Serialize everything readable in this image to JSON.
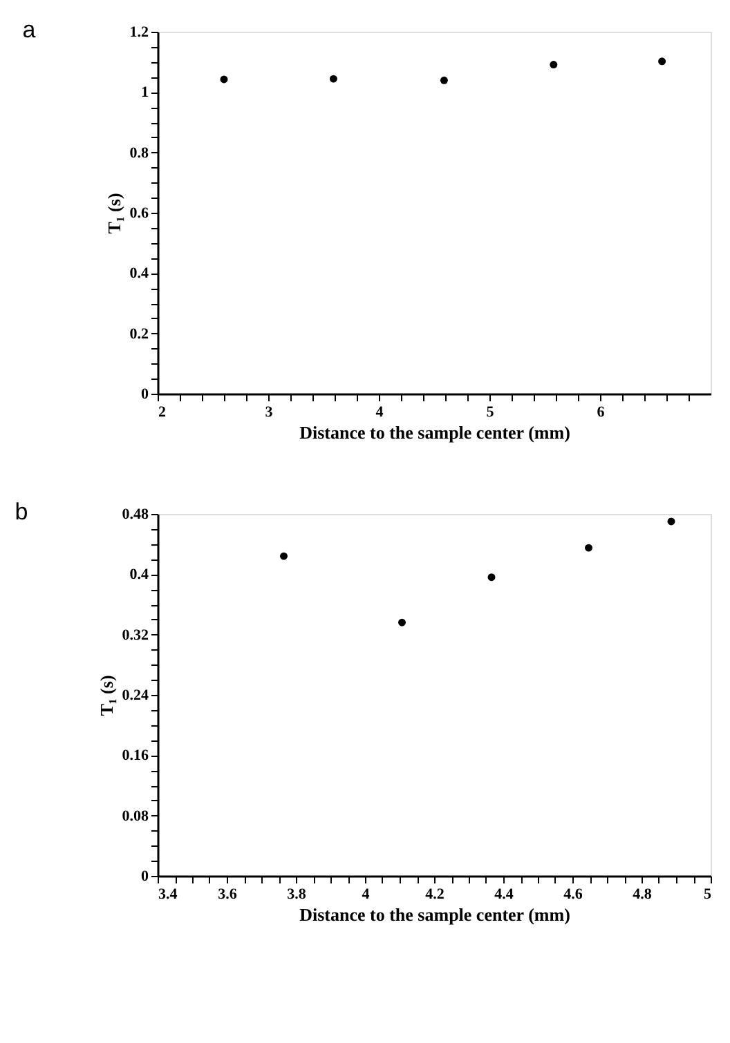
{
  "chart_data": [
    {
      "type": "scatter",
      "title": "a",
      "xlabel": "Distance to the sample center (mm)",
      "ylabel": "T₁ (s)",
      "marker": "circle",
      "grid": false,
      "x": [
        2.6,
        3.59,
        4.59,
        5.58,
        6.56
      ],
      "series": [
        {
          "color": "#000000",
          "values": [
            1.042,
            1.044,
            1.039,
            1.091,
            1.102
          ]
        }
      ],
      "xlim": [
        2,
        7
      ],
      "ylim": [
        0,
        1.2
      ],
      "xticks": [
        2,
        {
          "value": 2.2,
          "label": null
        },
        {
          "value": 2.4,
          "label": null
        },
        {
          "value": 2.6,
          "label": null
        },
        {
          "value": 2.8,
          "label": null
        },
        3,
        {
          "value": 3.2,
          "label": null
        },
        {
          "value": 3.4,
          "label": null
        },
        {
          "value": 3.6,
          "label": null
        },
        {
          "value": 3.8,
          "label": null
        },
        4,
        {
          "value": 4.2,
          "label": null
        },
        {
          "value": 4.4,
          "label": null
        },
        {
          "value": 4.6,
          "label": null
        },
        {
          "value": 4.8,
          "label": null
        },
        5,
        {
          "value": 5.2,
          "label": null
        },
        {
          "value": 5.4,
          "label": null
        },
        {
          "value": 5.6,
          "label": null
        },
        {
          "value": 5.8,
          "label": null
        },
        6,
        {
          "value": 6.2,
          "label": null
        },
        {
          "value": 6.4,
          "label": null
        },
        {
          "value": 6.6,
          "label": null
        },
        {
          "value": 6.8,
          "label": null
        }
      ],
      "yticks": [
        0,
        {
          "value": 0.05,
          "label": null
        },
        {
          "value": 0.1,
          "label": null
        },
        {
          "value": 0.15,
          "label": null
        },
        0.2,
        {
          "value": 0.25,
          "label": null
        },
        {
          "value": 0.3,
          "label": null
        },
        {
          "value": 0.35,
          "label": null
        },
        0.4,
        {
          "value": 0.45,
          "label": null
        },
        {
          "value": 0.5,
          "label": null
        },
        {
          "value": 0.55,
          "label": null
        },
        0.6,
        {
          "value": 0.65,
          "label": null
        },
        {
          "value": 0.7,
          "label": null
        },
        {
          "value": 0.75,
          "label": null
        },
        0.8,
        {
          "value": 0.85,
          "label": null
        },
        {
          "value": 0.9,
          "label": null
        },
        {
          "value": 0.95,
          "label": null
        },
        1,
        {
          "value": 1.05,
          "label": null
        },
        {
          "value": 1.1,
          "label": null
        },
        {
          "value": 1.15,
          "label": null
        },
        1.2
      ]
    },
    {
      "type": "scatter",
      "title": "b",
      "xlabel": "Distance to the sample center (mm)",
      "ylabel": "T₁ (s)",
      "marker": "circle",
      "grid": false,
      "x": [
        3.765,
        4.107,
        4.366,
        4.647,
        4.886
      ],
      "series": [
        {
          "color": "#000000",
          "values": [
            0.424,
            0.336,
            0.396,
            0.435,
            0.47
          ]
        }
      ],
      "xlim": [
        3.4,
        5
      ],
      "ylim": [
        0,
        0.48
      ],
      "xticks": [
        3.4,
        {
          "value": 3.45,
          "label": null
        },
        {
          "value": 3.5,
          "label": null
        },
        {
          "value": 3.55,
          "label": null
        },
        3.6,
        {
          "value": 3.65,
          "label": null
        },
        {
          "value": 3.7,
          "label": null
        },
        {
          "value": 3.75,
          "label": null
        },
        3.8,
        {
          "value": 3.85,
          "label": null
        },
        {
          "value": 3.9,
          "label": null
        },
        {
          "value": 3.95,
          "label": null
        },
        4,
        {
          "value": 4.05,
          "label": null
        },
        {
          "value": 4.1,
          "label": null
        },
        {
          "value": 4.15,
          "label": null
        },
        4.2,
        {
          "value": 4.25,
          "label": null
        },
        {
          "value": 4.3,
          "label": null
        },
        {
          "value": 4.35,
          "label": null
        },
        4.4,
        {
          "value": 4.45,
          "label": null
        },
        {
          "value": 4.5,
          "label": null
        },
        {
          "value": 4.55,
          "label": null
        },
        4.6,
        {
          "value": 4.65,
          "label": null
        },
        {
          "value": 4.7,
          "label": null
        },
        {
          "value": 4.75,
          "label": null
        },
        4.8,
        {
          "value": 4.85,
          "label": null
        },
        {
          "value": 4.9,
          "label": null
        },
        {
          "value": 4.95,
          "label": null
        },
        5
      ],
      "yticks": [
        0,
        {
          "value": 0.02,
          "label": null
        },
        {
          "value": 0.04,
          "label": null
        },
        {
          "value": 0.06,
          "label": null
        },
        0.08,
        {
          "value": 0.1,
          "label": null
        },
        {
          "value": 0.12,
          "label": null
        },
        {
          "value": 0.14,
          "label": null
        },
        0.16,
        {
          "value": 0.18,
          "label": null
        },
        {
          "value": 0.2,
          "label": null
        },
        {
          "value": 0.22,
          "label": null
        },
        0.24,
        {
          "value": 0.26,
          "label": null
        },
        {
          "value": 0.28,
          "label": null
        },
        {
          "value": 0.3,
          "label": null
        },
        0.32,
        {
          "value": 0.34,
          "label": null
        },
        {
          "value": 0.36,
          "label": null
        },
        {
          "value": 0.38,
          "label": null
        },
        0.4,
        {
          "value": 0.42,
          "label": null
        },
        {
          "value": 0.44,
          "label": null
        },
        {
          "value": 0.46,
          "label": null
        },
        0.48
      ]
    }
  ]
}
